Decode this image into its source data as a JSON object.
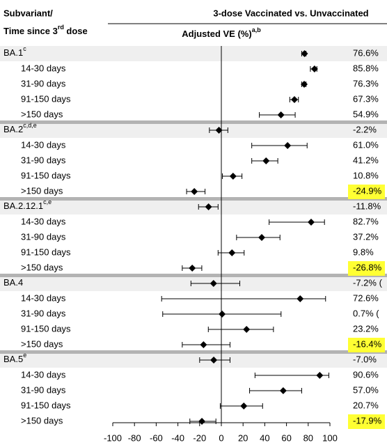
{
  "chart_data": {
    "type": "forest",
    "header": {
      "left_line1": "Subvariant/",
      "left_line2": "Time since 3",
      "left_line2_sup": "rd",
      "left_line2_end": " dose",
      "comparison": "3-dose Vaccinated vs. Unvaccinated"
    },
    "x_label": "Adjusted VE (%)",
    "x_label_sup": "a,b",
    "xlim": [
      -100,
      100
    ],
    "xticks": [
      -100,
      -80,
      -60,
      -40,
      -20,
      0,
      20,
      40,
      60,
      80,
      100
    ],
    "marker_color": "#000000",
    "highlight_color": "#ffff33",
    "groups": [
      {
        "name": "BA.1",
        "sup": "c",
        "value": 76.6,
        "ci": [
          74,
          78
        ],
        "value_label": "76.6%",
        "rows": [
          {
            "label": "14-30 days",
            "value": 85.8,
            "ci": [
              82,
              88
            ],
            "value_label": "85.8%"
          },
          {
            "label": "31-90 days",
            "value": 76.3,
            "ci": [
              74,
              78
            ],
            "value_label": "76.3%"
          },
          {
            "label": "91-150 days",
            "value": 67.3,
            "ci": [
              63,
              71
            ],
            "value_label": "67.3%"
          },
          {
            "label": ">150 days",
            "value": 54.9,
            "ci": [
              35,
              68
            ],
            "value_label": "54.9%"
          }
        ]
      },
      {
        "name": "BA.2",
        "sup": "c,d,e",
        "value": -2.2,
        "ci": [
          -11,
          6
        ],
        "value_label": "-2.2%",
        "rows": [
          {
            "label": "14-30 days",
            "value": 61.0,
            "ci": [
              28,
              79
            ],
            "value_label": "61.0%"
          },
          {
            "label": "31-90 days",
            "value": 41.2,
            "ci": [
              28,
              52
            ],
            "value_label": "41.2%"
          },
          {
            "label": "91-150 days",
            "value": 10.8,
            "ci": [
              1,
              19
            ],
            "value_label": "10.8%"
          },
          {
            "label": ">150 days",
            "value": -24.9,
            "ci": [
              -32,
              -15
            ],
            "value_label": "-24.9%",
            "highlight": true
          }
        ]
      },
      {
        "name": "BA.2.12.1",
        "sup": "c,e",
        "value": -11.8,
        "ci": [
          -21,
          -3
        ],
        "value_label": "-11.8%",
        "rows": [
          {
            "label": "14-30 days",
            "value": 82.7,
            "ci": [
              44,
              95
            ],
            "value_label": "82.7%"
          },
          {
            "label": "31-90 days",
            "value": 37.2,
            "ci": [
              14,
              54
            ],
            "value_label": "37.2%"
          },
          {
            "label": "91-150 days",
            "value": 9.8,
            "ci": [
              -3,
              21
            ],
            "value_label": "9.8%"
          },
          {
            "label": ">150 days",
            "value": -26.8,
            "ci": [
              -36,
              -18
            ],
            "value_label": "-26.8%",
            "highlight": true
          }
        ]
      },
      {
        "name": "BA.4",
        "sup": null,
        "value": -7.2,
        "ci": [
          -28,
          17
        ],
        "value_label": "-7.2% (",
        "rows": [
          {
            "label": "14-30 days",
            "value": 72.6,
            "ci": [
              -55,
              96
            ],
            "value_label": "72.6%"
          },
          {
            "label": "31-90 days",
            "value": 0.7,
            "ci": [
              -54,
              55
            ],
            "value_label": "0.7% ("
          },
          {
            "label": "91-150 days",
            "value": 23.2,
            "ci": [
              -12,
              48
            ],
            "value_label": "23.2%"
          },
          {
            "label": ">150 days",
            "value": -16.4,
            "ci": [
              -36,
              8
            ],
            "value_label": "-16.4%",
            "highlight": true
          }
        ]
      },
      {
        "name": "BA.5",
        "sup": "e",
        "value": -7.0,
        "ci": [
          -20,
          8
        ],
        "value_label": "-7.0%",
        "rows": [
          {
            "label": "14-30 days",
            "value": 90.6,
            "ci": [
              31,
              99
            ],
            "value_label": "90.6%"
          },
          {
            "label": "31-90 days",
            "value": 57.0,
            "ci": [
              26,
              74
            ],
            "value_label": "57.0%"
          },
          {
            "label": "91-150 days",
            "value": 20.7,
            "ci": [
              -1,
              38
            ],
            "value_label": "20.7%"
          },
          {
            "label": ">150 days",
            "value": -17.9,
            "ci": [
              -29,
              -5
            ],
            "value_label": "-17.9%",
            "highlight": true
          }
        ]
      }
    ]
  }
}
